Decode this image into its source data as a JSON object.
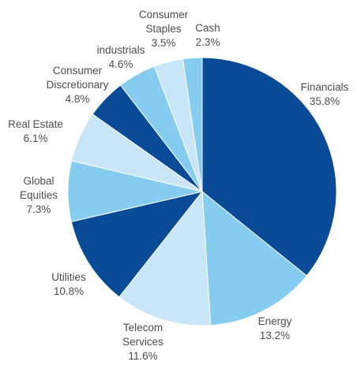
{
  "chart_data": {
    "type": "pie",
    "title": "",
    "slices": [
      {
        "label": [
          "Financials"
        ],
        "value": 35.8,
        "value_label": "35.8%",
        "color": "#0a4b97"
      },
      {
        "label": [
          "Energy"
        ],
        "value": 13.2,
        "value_label": "13.2%",
        "color": "#85ccf0"
      },
      {
        "label": [
          "Telecom",
          "Services"
        ],
        "value": 11.6,
        "value_label": "11.6%",
        "color": "#c8e6f8"
      },
      {
        "label": [
          "Utilities"
        ],
        "value": 10.8,
        "value_label": "10.8%",
        "color": "#0a4b97"
      },
      {
        "label": [
          "Global",
          "Equities"
        ],
        "value": 7.3,
        "value_label": "7.3%",
        "color": "#85ccf0"
      },
      {
        "label": [
          "Real Estate"
        ],
        "value": 6.1,
        "value_label": "6.1%",
        "color": "#c8e6f8"
      },
      {
        "label": [
          "Consumer",
          "Discretionary"
        ],
        "value": 4.8,
        "value_label": "4.8%",
        "color": "#0a4b97"
      },
      {
        "label": [
          "industrials"
        ],
        "value": 4.6,
        "value_label": "4.6%",
        "color": "#85ccf0"
      },
      {
        "label": [
          "Consumer",
          "Staples"
        ],
        "value": 3.5,
        "value_label": "3.5%",
        "color": "#c8e6f8"
      },
      {
        "label": [
          "Cash"
        ],
        "value": 2.3,
        "value_label": "2.3%",
        "color": "#85ccf0"
      }
    ],
    "start": "12 o'clock",
    "direction": "clockwise",
    "legend": "none"
  }
}
